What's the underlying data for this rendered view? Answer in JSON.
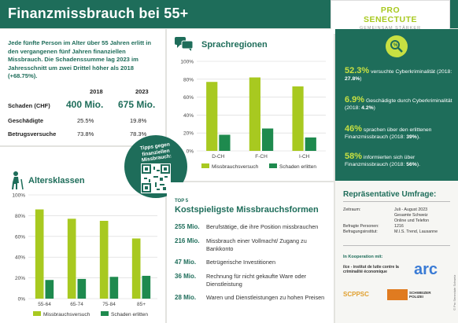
{
  "header": {
    "title": "Finanzmissbrauch bei 55+"
  },
  "logo": {
    "line1": "PRO",
    "line2": "SENECTUTE",
    "line3": "GEMEINSAM STÄRKER"
  },
  "intro": "Jede fünfte Person im Alter über 55 Jahren erlitt in den vergangenen fünf Jahren finanziellen Missbrauch. Die Schadenssumme lag 2023 im Jahresschnitt um zwei Drittel höher als 2018 (+68.75%).",
  "stats_table": {
    "col1": "2018",
    "col2": "2023",
    "rows": [
      {
        "label": "Schaden (CHF)",
        "v2018": "400 Mio.",
        "v2023": "675 Mio."
      },
      {
        "label": "Geschädigte",
        "v2018": "25.5%",
        "v2023": "19.8%"
      },
      {
        "label": "Betrugsversuche",
        "v2018": "73.8%",
        "v2023": "78.3%"
      }
    ]
  },
  "qr": {
    "caption": "Tipps gegen finanziellen Missbrauch:"
  },
  "colors": {
    "lime": "#a8c920",
    "green": "#1e8a4e",
    "dark": "#1e6d5a"
  },
  "chart_data": [
    {
      "type": "bar",
      "title": "Sprachregionen",
      "categories": [
        "D-CH",
        "F-CH",
        "I-CH"
      ],
      "series": [
        {
          "name": "Missbrauchsversuch",
          "values": [
            77,
            82,
            72
          ]
        },
        {
          "name": "Schaden erlitten",
          "values": [
            18,
            25,
            15
          ]
        }
      ],
      "yticks": [
        "0%",
        "20%",
        "40%",
        "60%",
        "80%",
        "100%"
      ],
      "ylim": [
        0,
        100
      ],
      "grid": true,
      "legend": "bottom"
    },
    {
      "type": "bar",
      "title": "Altersklassen",
      "categories": [
        "55-64",
        "65-74",
        "75-84",
        "85+"
      ],
      "series": [
        {
          "name": "Missbrauchsversuch",
          "values": [
            86,
            77,
            75,
            58
          ]
        },
        {
          "name": "Schaden erlitten",
          "values": [
            18,
            19,
            21,
            22
          ]
        }
      ],
      "yticks": [
        "0%",
        "20%",
        "40%",
        "60%",
        "80%",
        "100%"
      ],
      "ylim": [
        0,
        100
      ],
      "grid": true,
      "legend": "bottom"
    }
  ],
  "right_stats": [
    {
      "big": "52.3%",
      "text": " versuchte Cyberkriminalität (2018: ",
      "bold": "27.8%",
      "end": ")"
    },
    {
      "big": "6.9%",
      "text": " Geschädigte durch Cyberkriminalität (2018: ",
      "bold": "4.2%",
      "end": ")"
    },
    {
      "big": "46%",
      "text": " sprachen über den erlittenen Finanzmissbrauch (2018: ",
      "bold": "39%",
      "end": ")."
    },
    {
      "big": "58%",
      "text": " informierten sich über Finanzmissbrauch (2018: ",
      "bold": "56%",
      "end": ")."
    }
  ],
  "survey": {
    "title": "Repräsentative Umfrage:",
    "rows": [
      {
        "k": "Zeitraum:",
        "v": "Juli - August 2023"
      },
      {
        "k": "",
        "v": "Gesamte Schweiz"
      },
      {
        "k": "",
        "v": "Online und Telefon"
      },
      {
        "k": "Befragte Personen:",
        "v": "1216"
      },
      {
        "k": "Befragungsinstitut:",
        "v": "M.I.S. Trend, Lausanne"
      }
    ],
    "coop": "In Kooperation mit:",
    "partner1": "ilce - institut de lutte contre la criminalité économique",
    "partner2": "arc",
    "partner3": "SCPPSC",
    "partner4": "SCHWEIZER POLIZEI",
    "copyright": "© Pro Senectute Schweiz"
  },
  "top5": {
    "label": "TOP 5",
    "title": "Kostspieligste Missbrauchsformen",
    "items": [
      {
        "amount": "255 Mio.",
        "text": "Berufstätige, die ihre Position missbrauchen"
      },
      {
        "amount": "216 Mio.",
        "text": "Missbrauch einer Vollmacht/ Zugang zu Bankkonto"
      },
      {
        "amount": "47 Mio.",
        "text": "Betrügerische Investitionen"
      },
      {
        "amount": "36 Mio.",
        "text": "Rechnung für nicht gekaufte Ware oder Dienstleistung"
      },
      {
        "amount": "28 Mio.",
        "text": "Waren und Dienstleistungen zu hohen Preisen"
      }
    ]
  }
}
